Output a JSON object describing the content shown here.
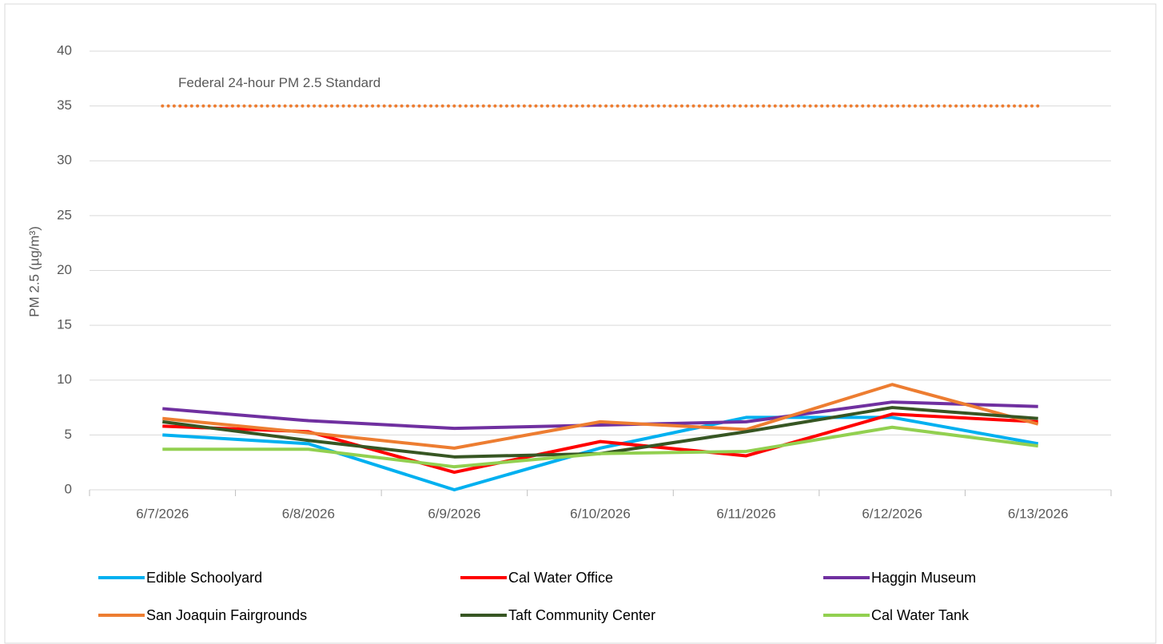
{
  "chart_data": {
    "type": "line",
    "y_label": "PM 2.5 (µg/m³)",
    "categories": [
      "6/7/2026",
      "6/8/2026",
      "6/9/2026",
      "6/10/2026",
      "6/11/2026",
      "6/12/2026",
      "6/13/2026"
    ],
    "series": [
      {
        "name": "Edible Schoolyard",
        "color": "#00b0f0",
        "values": [
          5.0,
          4.2,
          0,
          3.8,
          6.6,
          6.6,
          4.2
        ]
      },
      {
        "name": "Cal Water Office",
        "color": "#ff0000",
        "values": [
          5.8,
          5.3,
          1.6,
          4.4,
          3.1,
          6.9,
          6.2
        ]
      },
      {
        "name": "Haggin Museum",
        "color": "#7030a0",
        "values": [
          7.4,
          6.3,
          5.6,
          5.9,
          6.2,
          8.0,
          7.6
        ]
      },
      {
        "name": "San Joaquin Fairgrounds",
        "color": "#ed7d31",
        "values": [
          6.5,
          5.2,
          3.8,
          6.2,
          5.5,
          9.6,
          6.0
        ]
      },
      {
        "name": "Taft Community Center",
        "color": "#375623",
        "values": [
          6.2,
          4.5,
          3.0,
          3.3,
          5.3,
          7.5,
          6.5
        ]
      },
      {
        "name": "Cal Water Tank",
        "color": "#92d050",
        "values": [
          3.7,
          3.7,
          2.1,
          3.3,
          3.5,
          5.7,
          4.0
        ]
      }
    ],
    "reference_line": {
      "value": 35,
      "label": "Federal 24-hour PM 2.5 Standard",
      "color": "#ed7d31"
    },
    "ylim": [
      0,
      40
    ],
    "yticks": [
      0,
      5,
      10,
      15,
      20,
      25,
      30,
      35,
      40
    ],
    "grid": true
  }
}
